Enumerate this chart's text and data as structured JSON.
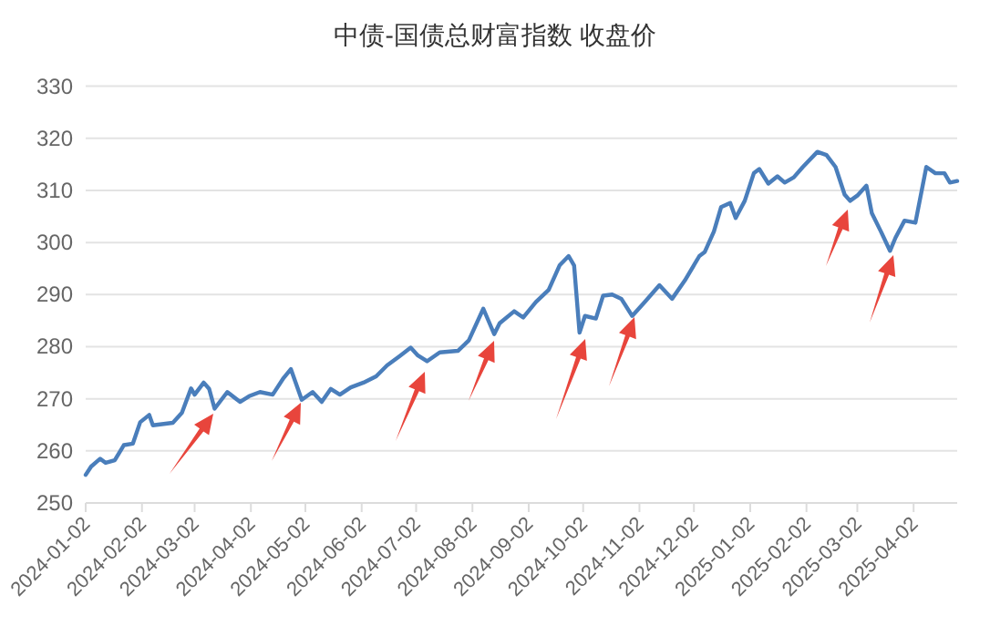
{
  "chart_data": {
    "type": "line",
    "title": "中债-国债总财富指数 收盘价",
    "x": [
      "2024-01-02",
      "2024-01-05",
      "2024-01-10",
      "2024-01-13",
      "2024-01-18",
      "2024-01-23",
      "2024-01-28",
      "2024-02-01",
      "2024-02-06",
      "2024-02-08",
      "2024-02-19",
      "2024-02-24",
      "2024-02-29",
      "2024-03-02",
      "2024-03-07",
      "2024-03-10",
      "2024-03-13",
      "2024-03-20",
      "2024-03-27",
      "2024-04-01",
      "2024-04-07",
      "2024-04-14",
      "2024-04-20",
      "2024-04-24",
      "2024-04-30",
      "2024-05-06",
      "2024-05-11",
      "2024-05-16",
      "2024-05-21",
      "2024-05-27",
      "2024-06-03",
      "2024-06-10",
      "2024-06-16",
      "2024-06-23",
      "2024-06-29",
      "2024-07-03",
      "2024-07-08",
      "2024-07-15",
      "2024-07-25",
      "2024-07-31",
      "2024-08-08",
      "2024-08-14",
      "2024-08-17",
      "2024-08-25",
      "2024-08-30",
      "2024-09-06",
      "2024-09-13",
      "2024-09-19",
      "2024-09-24",
      "2024-09-27",
      "2024-09-30",
      "2024-10-03",
      "2024-10-09",
      "2024-10-13",
      "2024-10-18",
      "2024-10-23",
      "2024-10-29",
      "2024-11-05",
      "2024-11-13",
      "2024-11-20",
      "2024-11-27",
      "2024-12-05",
      "2024-12-08",
      "2024-12-13",
      "2024-12-17",
      "2024-12-22",
      "2024-12-25",
      "2024-12-30",
      "2025-01-04",
      "2025-01-07",
      "2025-01-12",
      "2025-01-17",
      "2025-01-21",
      "2025-01-26",
      "2025-01-31",
      "2025-02-08",
      "2025-02-13",
      "2025-02-18",
      "2025-02-23",
      "2025-02-26",
      "2025-03-02",
      "2025-03-07",
      "2025-03-10",
      "2025-03-15",
      "2025-03-20",
      "2025-03-23",
      "2025-03-28",
      "2025-04-03",
      "2025-04-09",
      "2025-04-14",
      "2025-04-19",
      "2025-04-22",
      "2025-04-26"
    ],
    "series": [
      {
        "color": "#4a7ebb",
        "values": [
          255.4,
          257.0,
          258.5,
          257.7,
          258.2,
          261.1,
          261.4,
          265.5,
          266.9,
          264.9,
          265.4,
          267.3,
          272.0,
          270.8,
          273.1,
          271.9,
          268.1,
          271.3,
          269.4,
          270.5,
          271.3,
          270.8,
          274.0,
          275.7,
          269.8,
          271.3,
          269.4,
          271.9,
          270.8,
          272.2,
          273.1,
          274.3,
          276.4,
          278.2,
          279.8,
          278.3,
          277.2,
          278.9,
          279.2,
          281.2,
          287.3,
          282.4,
          284.5,
          286.8,
          285.6,
          288.6,
          290.9,
          295.6,
          297.4,
          295.6,
          282.7,
          285.9,
          285.4,
          289.8,
          290.0,
          289.2,
          285.9,
          288.6,
          291.8,
          289.2,
          292.7,
          297.4,
          298.2,
          302.1,
          306.8,
          307.6,
          304.7,
          308.0,
          313.3,
          314.1,
          311.3,
          312.7,
          311.5,
          312.5,
          314.5,
          317.4,
          316.8,
          314.5,
          309.2,
          308.0,
          309.0,
          310.9,
          305.6,
          302.1,
          298.4,
          300.9,
          304.2,
          303.8,
          314.5,
          313.3,
          313.3,
          311.5,
          311.8
        ]
      }
    ],
    "xlim": [
      "2024-01-02",
      "2025-04-26"
    ],
    "xticks": [
      "2024-01-02",
      "2024-02-02",
      "2024-03-02",
      "2024-04-02",
      "2024-05-02",
      "2024-06-02",
      "2024-07-02",
      "2024-08-02",
      "2024-09-02",
      "2024-10-02",
      "2024-11-02",
      "2024-12-02",
      "2025-01-02",
      "2025-02-02",
      "2025-03-02",
      "2025-04-02"
    ],
    "ylim": [
      250,
      330
    ],
    "yticks": [
      250,
      260,
      270,
      280,
      290,
      300,
      310,
      320,
      330
    ],
    "grid": "y"
  }
}
